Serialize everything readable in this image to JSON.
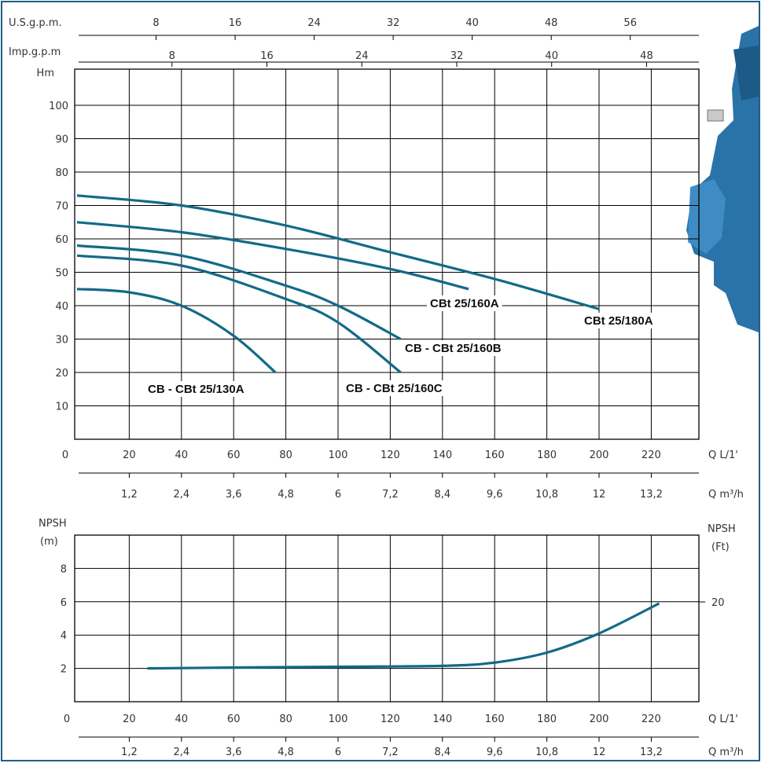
{
  "chart_data": [
    {
      "type": "line",
      "title": "",
      "xlabel": "Q L/1'",
      "ylabel": "Hm",
      "x_ticks": [
        0,
        20,
        40,
        60,
        80,
        100,
        120,
        140,
        160,
        180,
        200,
        220
      ],
      "x_tick_labels": [
        "0",
        "20",
        "40",
        "60",
        "80",
        "100",
        "120",
        "140",
        "160",
        "180",
        "200",
        "220"
      ],
      "y_ticks": [
        10,
        20,
        30,
        40,
        50,
        60,
        70,
        80,
        90,
        100
      ],
      "y_tick_labels": [
        "10",
        "20",
        "30",
        "40",
        "50",
        "60",
        "70",
        "80",
        "90",
        "100"
      ],
      "xlim": [
        0,
        240
      ],
      "ylim": [
        0,
        110
      ],
      "grid": true,
      "secondary_axes": {
        "usgpm": {
          "label": "U.S.g.p.m.",
          "ticks": [
            "8",
            "16",
            "24",
            "32",
            "40",
            "48",
            "56"
          ],
          "factor": 3.785
        },
        "impgpm": {
          "label": "Imp.g.p.m",
          "ticks": [
            "8",
            "16",
            "24",
            "32",
            "40",
            "48"
          ],
          "factor": 4.546
        },
        "m3h": {
          "label": "Q m³/h",
          "ticks": [
            "1,2",
            "2,4",
            "3,6",
            "4,8",
            "6",
            "7,2",
            "8,4",
            "9,6",
            "10,8",
            "12",
            "13,2"
          ],
          "factor": 16.667
        }
      },
      "series": [
        {
          "name": "CBt 25/180A",
          "x": [
            0,
            40,
            80,
            120,
            160,
            200
          ],
          "y": [
            73,
            70,
            64,
            56,
            48,
            39
          ]
        },
        {
          "name": "CBt 25/160A",
          "x": [
            0,
            40,
            80,
            120,
            150
          ],
          "y": [
            65,
            62,
            57,
            51,
            45
          ]
        },
        {
          "name": "CB - CBt  25/160B",
          "x": [
            0,
            40,
            80,
            100,
            124
          ],
          "y": [
            58,
            55,
            46,
            40,
            30
          ]
        },
        {
          "name": "CB - CBt  25/160C",
          "x": [
            0,
            40,
            80,
            100,
            124
          ],
          "y": [
            55,
            52,
            42,
            35,
            20
          ]
        },
        {
          "name": "CB - CBt 25/130A",
          "x": [
            0,
            20,
            40,
            60,
            76
          ],
          "y": [
            45,
            44,
            40,
            31,
            20
          ]
        }
      ]
    },
    {
      "type": "line",
      "title": "",
      "xlabel": "Q L/1'",
      "ylabel": "NPSH (m)",
      "ylabel_right": "NPSH (Ft)",
      "x_ticks": [
        0,
        20,
        40,
        60,
        80,
        100,
        120,
        140,
        160,
        180,
        200,
        220
      ],
      "x_tick_labels": [
        "0",
        "20",
        "40",
        "60",
        "80",
        "100",
        "120",
        "140",
        "160",
        "180",
        "200",
        "220"
      ],
      "y_ticks": [
        2,
        4,
        6,
        8
      ],
      "y_tick_labels": [
        "2",
        "4",
        "6",
        "8"
      ],
      "right_ticks": [
        "20"
      ],
      "xlim": [
        0,
        240
      ],
      "ylim": [
        0,
        10
      ],
      "grid": true,
      "series": [
        {
          "name": "",
          "x": [
            27,
            60,
            100,
            140,
            160,
            180,
            200,
            223
          ],
          "y": [
            2,
            2.05,
            2.1,
            2.15,
            2.35,
            2.95,
            4.1,
            5.9
          ]
        }
      ]
    }
  ],
  "colors": {
    "curve": "#136a88",
    "frame": "#1f5f86",
    "grid": "#000000",
    "pump_body": "#2a73a8"
  }
}
